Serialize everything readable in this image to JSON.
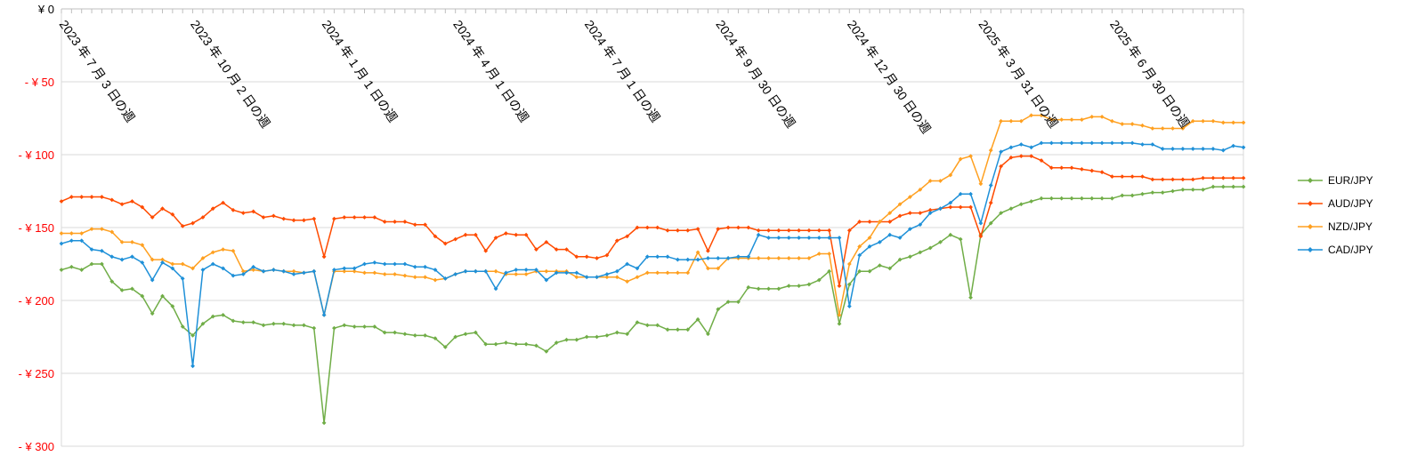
{
  "chart_data": {
    "type": "line",
    "title": "",
    "xlabel": "",
    "ylabel": "",
    "ylim": [
      -300,
      0
    ],
    "y_ticks": [
      {
        "value": 0,
        "label": "¥ 0",
        "color": "#000000"
      },
      {
        "value": -50,
        "label": "- ¥ 50",
        "color": "#ff0000"
      },
      {
        "value": -100,
        "label": "- ¥ 100",
        "color": "#ff0000"
      },
      {
        "value": -150,
        "label": "- ¥ 150",
        "color": "#ff0000"
      },
      {
        "value": -200,
        "label": "- ¥ 200",
        "color": "#ff0000"
      },
      {
        "value": -250,
        "label": "- ¥ 250",
        "color": "#ff0000"
      },
      {
        "value": -300,
        "label": "- ¥ 300",
        "color": "#ff0000"
      }
    ],
    "x_labels": [
      {
        "index": 0,
        "label": "2023 年 7 月 3 日の週"
      },
      {
        "index": 13,
        "label": "2023 年 10 月 2 日の週"
      },
      {
        "index": 26,
        "label": "2024 年 1 月 1 日の週"
      },
      {
        "index": 39,
        "label": "2024 年 4 月 1 日の週"
      },
      {
        "index": 52,
        "label": "2024 年 7 月 1 日の週"
      },
      {
        "index": 65,
        "label": "2024 年 9 月 30 日の週"
      },
      {
        "index": 78,
        "label": "2024 年 12 月 30 日の週"
      },
      {
        "index": 91,
        "label": "2025 年 3 月 31 日の週"
      },
      {
        "index": 104,
        "label": "2025 年 6 月 30 日の週"
      }
    ],
    "legend_position": "right",
    "grid": true,
    "series": [
      {
        "name": "EUR/JPY",
        "color": "#70ad47",
        "values": [
          -179,
          -177,
          -179,
          -175,
          -175,
          -187,
          -193,
          -192,
          -197,
          -209,
          -197,
          -204,
          -218,
          -224,
          -216,
          -211,
          -210,
          -214,
          -215,
          -215,
          -217,
          -216,
          -216,
          -217,
          -217,
          -219,
          -284,
          -219,
          -217,
          -218,
          -218,
          -218,
          -222,
          -222,
          -223,
          -224,
          -224,
          -226,
          -232,
          -225,
          -223,
          -222,
          -230,
          -230,
          -229,
          -230,
          -230,
          -231,
          -235,
          -229,
          -227,
          -227,
          -225,
          -225,
          -224,
          -222,
          -223,
          -215,
          -217,
          -217,
          -220,
          -220,
          -220,
          -213,
          -223,
          -206,
          -201,
          -201,
          -191,
          -192,
          -192,
          -192,
          -190,
          -190,
          -189,
          -186,
          -180,
          -216,
          -189,
          -180,
          -180,
          -176,
          -178,
          -172,
          -170,
          -167,
          -164,
          -160,
          -155,
          -158,
          -198,
          -155,
          -147,
          -140,
          -137,
          -134,
          -132,
          -130,
          -130,
          -130,
          -130,
          -130,
          -130,
          -130,
          -130,
          -128,
          -128,
          -127,
          -126,
          -126,
          -125,
          -124,
          -124,
          -124,
          -122,
          -122,
          -122,
          -122
        ]
      },
      {
        "name": "AUD/JPY",
        "color": "#ff4b00",
        "values": [
          -132,
          -129,
          -129,
          -129,
          -129,
          -131,
          -134,
          -132,
          -136,
          -143,
          -137,
          -141,
          -149,
          -147,
          -143,
          -137,
          -133,
          -138,
          -140,
          -139,
          -143,
          -142,
          -144,
          -145,
          -145,
          -144,
          -170,
          -144,
          -143,
          -143,
          -143,
          -143,
          -146,
          -146,
          -146,
          -148,
          -148,
          -156,
          -161,
          -158,
          -155,
          -155,
          -166,
          -157,
          -154,
          -155,
          -155,
          -165,
          -160,
          -165,
          -165,
          -170,
          -170,
          -171,
          -169,
          -159,
          -156,
          -150,
          -150,
          -150,
          -152,
          -152,
          -152,
          -151,
          -166,
          -151,
          -150,
          -150,
          -150,
          -152,
          -152,
          -152,
          -152,
          -152,
          -152,
          -152,
          -152,
          -190,
          -152,
          -146,
          -146,
          -146,
          -146,
          -142,
          -140,
          -140,
          -138,
          -137,
          -136,
          -136,
          -136,
          -156,
          -133,
          -108,
          -102,
          -101,
          -101,
          -104,
          -109,
          -109,
          -109,
          -110,
          -111,
          -112,
          -115,
          -115,
          -115,
          -115,
          -117,
          -117,
          -117,
          -117,
          -117,
          -116,
          -116,
          -116,
          -116,
          -116
        ]
      },
      {
        "name": "NZD/JPY",
        "color": "#ffa020",
        "values": [
          -154,
          -154,
          -154,
          -151,
          -151,
          -153,
          -160,
          -160,
          -162,
          -172,
          -172,
          -175,
          -175,
          -178,
          -171,
          -167,
          -165,
          -166,
          -180,
          -179,
          -180,
          -179,
          -180,
          -180,
          -181,
          -180,
          -210,
          -180,
          -180,
          -180,
          -181,
          -181,
          -182,
          -182,
          -183,
          -184,
          -184,
          -186,
          -185,
          -182,
          -180,
          -180,
          -180,
          -180,
          -182,
          -182,
          -182,
          -180,
          -180,
          -180,
          -180,
          -184,
          -184,
          -184,
          -184,
          -184,
          -187,
          -184,
          -181,
          -181,
          -181,
          -181,
          -181,
          -167,
          -178,
          -178,
          -171,
          -171,
          -171,
          -171,
          -171,
          -171,
          -171,
          -171,
          -171,
          -168,
          -168,
          -210,
          -175,
          -163,
          -157,
          -146,
          -140,
          -134,
          -129,
          -124,
          -118,
          -118,
          -114,
          -103,
          -101,
          -120,
          -97,
          -77,
          -77,
          -77,
          -73,
          -73,
          -76,
          -76,
          -76,
          -76,
          -74,
          -74,
          -77,
          -79,
          -79,
          -80,
          -82,
          -82,
          -82,
          -82,
          -77,
          -77,
          -77,
          -78,
          -78,
          -78
        ]
      },
      {
        "name": "CAD/JPY",
        "color": "#1e90d8",
        "values": [
          -161,
          -159,
          -159,
          -165,
          -166,
          -170,
          -172,
          -170,
          -174,
          -186,
          -174,
          -178,
          -185,
          -245,
          -179,
          -175,
          -178,
          -183,
          -182,
          -177,
          -180,
          -179,
          -180,
          -182,
          -181,
          -180,
          -210,
          -179,
          -178,
          -178,
          -175,
          -174,
          -175,
          -175,
          -175,
          -177,
          -177,
          -179,
          -185,
          -182,
          -180,
          -180,
          -180,
          -192,
          -181,
          -179,
          -179,
          -179,
          -186,
          -181,
          -181,
          -181,
          -184,
          -184,
          -182,
          -180,
          -175,
          -178,
          -170,
          -170,
          -170,
          -172,
          -172,
          -172,
          -171,
          -171,
          -171,
          -170,
          -170,
          -155,
          -157,
          -157,
          -157,
          -157,
          -157,
          -157,
          -157,
          -157,
          -204,
          -169,
          -163,
          -160,
          -155,
          -157,
          -151,
          -148,
          -140,
          -137,
          -133,
          -127,
          -127,
          -147,
          -121,
          -98,
          -95,
          -93,
          -95,
          -92,
          -92,
          -92,
          -92,
          -92,
          -92,
          -92,
          -92,
          -92,
          -92,
          -93,
          -93,
          -96,
          -96,
          -96,
          -96,
          -96,
          -96,
          -97,
          -94,
          -95
        ]
      }
    ]
  }
}
